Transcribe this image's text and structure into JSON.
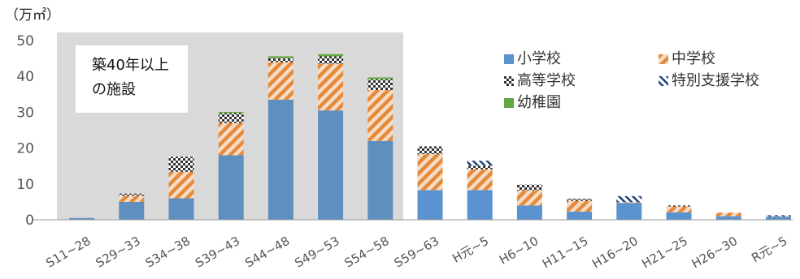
{
  "unit_label": "（万㎡）",
  "annotation": {
    "line1": "築40年以上",
    "line2": "の施設"
  },
  "colors": {
    "elementary": "#5a93cf",
    "elementary_old": "#5f8fbf",
    "junior_high": "#e48a3a",
    "high_school": "#333333",
    "special_support": "#1f3f7a",
    "kindergarten": "#62a843",
    "shade": "#d9d9d9"
  },
  "chart_data": {
    "type": "bar",
    "stacked": true,
    "title": "",
    "xlabel": "",
    "ylabel": "（万㎡）",
    "ylim": [
      0,
      50
    ],
    "yticks": [
      0,
      10,
      20,
      30,
      40,
      50
    ],
    "grid": false,
    "legend_position": "top-right",
    "shaded_region": {
      "from": "S11~28",
      "to": "S54~58",
      "label": "築40年以上の施設"
    },
    "categories": [
      "S11~28",
      "S29~33",
      "S34~38",
      "S39~43",
      "S44~48",
      "S49~53",
      "S54~58",
      "S59~63",
      "H元~5",
      "H6~10",
      "H11~15",
      "H16~20",
      "H21~25",
      "H26~30",
      "R元~5"
    ],
    "series": [
      {
        "name": "小学校",
        "values": [
          0.5,
          5.0,
          6.0,
          18.0,
          33.5,
          30.5,
          22.0,
          8.3,
          8.3,
          4.0,
          2.3,
          4.7,
          2.1,
          1.0,
          0.8
        ]
      },
      {
        "name": "中学校",
        "values": [
          0,
          1.7,
          7.4,
          9.0,
          10.5,
          13.0,
          14.2,
          10.0,
          5.8,
          4.2,
          3.0,
          0.2,
          1.6,
          1.0,
          0
        ]
      },
      {
        "name": "高等学校",
        "values": [
          0,
          0.6,
          4.2,
          2.8,
          1.1,
          2.1,
          3.0,
          2.2,
          1.0,
          1.6,
          0.6,
          0,
          0.3,
          0,
          0.2
        ]
      },
      {
        "name": "特別支援学校",
        "values": [
          0,
          0,
          0,
          0,
          0,
          0,
          0,
          0,
          1.4,
          0,
          0,
          1.7,
          0,
          0,
          0.3
        ]
      },
      {
        "name": "幼稚園",
        "values": [
          0,
          0,
          0,
          0.3,
          0.5,
          0.6,
          0.5,
          0,
          0,
          0,
          0,
          0,
          0,
          0,
          0
        ]
      }
    ]
  }
}
